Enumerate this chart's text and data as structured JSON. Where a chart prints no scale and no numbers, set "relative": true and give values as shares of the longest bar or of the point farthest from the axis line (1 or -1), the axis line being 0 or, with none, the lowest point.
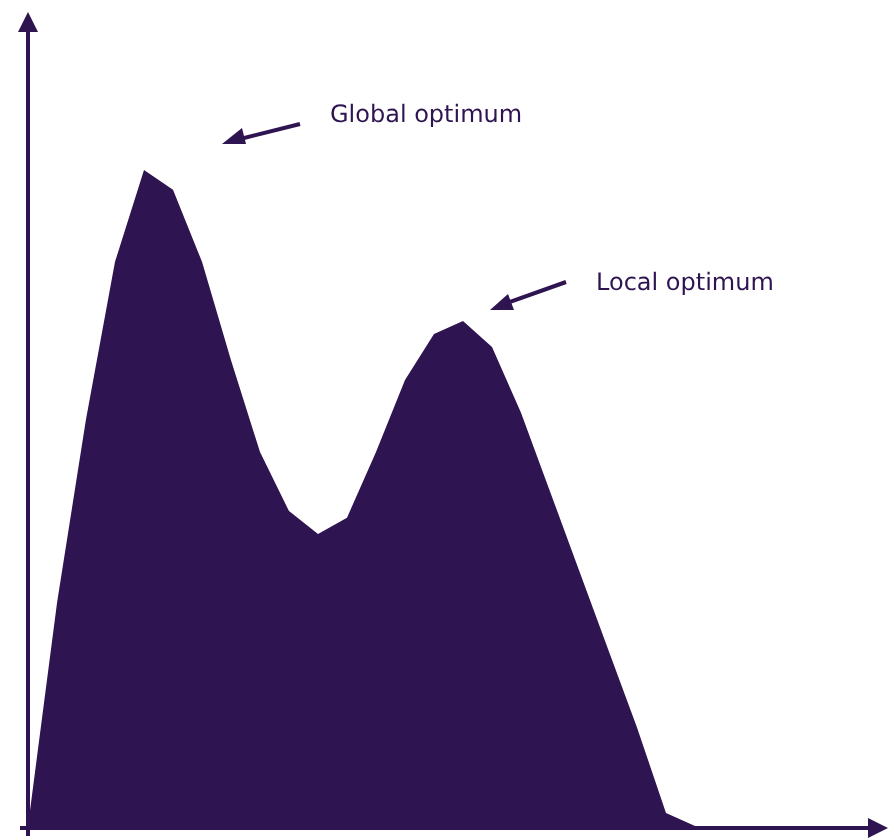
{
  "chart_data": {
    "type": "area",
    "relative": true,
    "categories": [
      null,
      null,
      null,
      null,
      null,
      null,
      null,
      null,
      null,
      null,
      null,
      null,
      null,
      null,
      null,
      null,
      null,
      null,
      null,
      null,
      null,
      null,
      null,
      null,
      null,
      null,
      null,
      null,
      null
    ],
    "series": [
      {
        "color": "#2e1450",
        "values": [
          0,
          0.34,
          0.62,
          0.86,
          1,
          0.97,
          0.86,
          0.71,
          0.57,
          0.48,
          0.445,
          0.47,
          0.57,
          0.68,
          0.75,
          0.77,
          0.73,
          0.63,
          0.51,
          0.39,
          0.27,
          0.15,
          0.02,
          0,
          0,
          0,
          0,
          0,
          0
        ]
      }
    ],
    "annotations": [
      "Global optimum",
      "Local optimum"
    ]
  }
}
